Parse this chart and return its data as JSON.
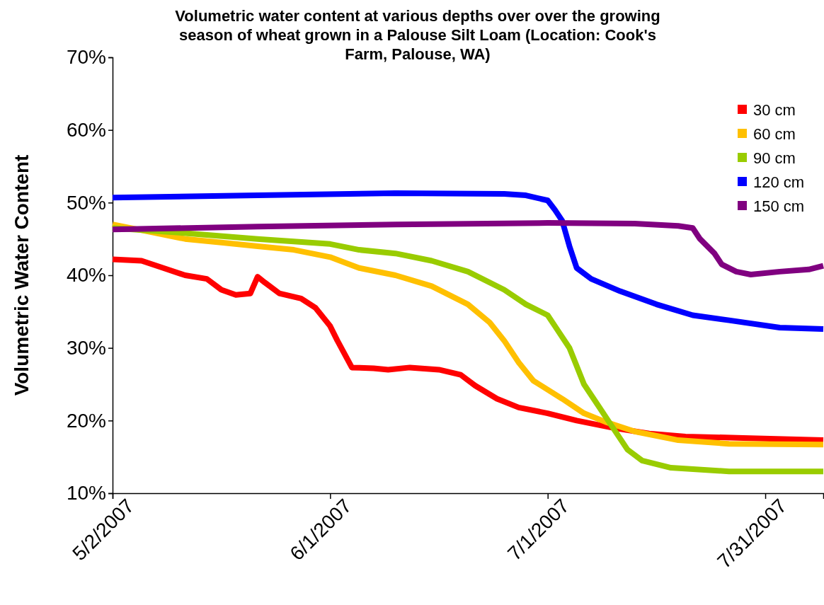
{
  "chart_data": {
    "type": "line",
    "title": "Volumetric water content at various depths over over the growing season of wheat grown in a Palouse Silt Loam (Location: Cook's Farm, Palouse, WA)",
    "ylabel": "Volumetric Water Content",
    "xlim": [
      "2007-05-02",
      "2007-08-08"
    ],
    "xticks": [
      {
        "value": "2007-05-02",
        "label": "5/2/2007"
      },
      {
        "value": "2007-06-01",
        "label": "6/1/2007"
      },
      {
        "value": "2007-07-01",
        "label": "7/1/2007"
      },
      {
        "value": "2007-07-31",
        "label": "7/31/2007"
      }
    ],
    "ylim": [
      10,
      70
    ],
    "yticks": [
      {
        "value": 10,
        "label": "10%"
      },
      {
        "value": 20,
        "label": "20%"
      },
      {
        "value": 30,
        "label": "30%"
      },
      {
        "value": 40,
        "label": "40%"
      },
      {
        "value": 50,
        "label": "50%"
      },
      {
        "value": 60,
        "label": "60%"
      },
      {
        "value": 70,
        "label": "70%"
      }
    ],
    "grid": false,
    "legend": "top right",
    "line_style": "solid",
    "series": [
      {
        "name": "30 cm",
        "color": "#ff0000",
        "x": [
          "2007-05-02",
          "2007-05-06",
          "2007-05-09",
          "2007-05-12",
          "2007-05-15",
          "2007-05-17",
          "2007-05-19",
          "2007-05-21",
          "2007-05-22",
          "2007-05-23",
          "2007-05-25",
          "2007-05-28",
          "2007-05-30",
          "2007-06-01",
          "2007-06-02",
          "2007-06-04",
          "2007-06-07",
          "2007-06-09",
          "2007-06-12",
          "2007-06-16",
          "2007-06-19",
          "2007-06-21",
          "2007-06-24",
          "2007-06-27",
          "2007-07-01",
          "2007-07-05",
          "2007-07-10",
          "2007-07-15",
          "2007-07-20",
          "2007-07-28",
          "2007-08-08"
        ],
        "values": [
          42.2,
          42,
          41,
          40,
          39.5,
          38,
          37.3,
          37.5,
          39.8,
          39,
          37.5,
          36.8,
          35.5,
          33,
          31,
          27.3,
          27.2,
          27,
          27.3,
          27,
          26.3,
          24.8,
          23,
          21.8,
          21,
          20,
          19,
          18.2,
          17.8,
          17.6,
          17.3
        ]
      },
      {
        "name": "60 cm",
        "color": "#ffc000",
        "x": [
          "2007-05-02",
          "2007-05-07",
          "2007-05-12",
          "2007-05-17",
          "2007-05-22",
          "2007-05-27",
          "2007-06-01",
          "2007-06-05",
          "2007-06-10",
          "2007-06-15",
          "2007-06-20",
          "2007-06-23",
          "2007-06-25",
          "2007-06-27",
          "2007-06-29",
          "2007-07-03",
          "2007-07-06",
          "2007-07-09",
          "2007-07-13",
          "2007-07-19",
          "2007-07-26",
          "2007-08-08"
        ],
        "values": [
          47,
          46,
          45,
          44.5,
          44,
          43.5,
          42.5,
          41,
          40,
          38.5,
          36,
          33.5,
          31,
          28,
          25.5,
          23,
          21,
          19.8,
          18.5,
          17.3,
          16.8,
          16.7
        ]
      },
      {
        "name": "90 cm",
        "color": "#99cc00",
        "x": [
          "2007-05-02",
          "2007-05-12",
          "2007-05-22",
          "2007-06-01",
          "2007-06-05",
          "2007-06-10",
          "2007-06-15",
          "2007-06-20",
          "2007-06-25",
          "2007-06-28",
          "2007-07-01",
          "2007-07-02",
          "2007-07-04",
          "2007-07-06",
          "2007-07-08",
          "2007-07-10",
          "2007-07-12",
          "2007-07-14",
          "2007-07-18",
          "2007-07-26",
          "2007-08-08"
        ],
        "values": [
          46.5,
          45.8,
          45,
          44.3,
          43.5,
          43,
          42,
          40.5,
          38,
          36,
          34.5,
          33,
          30,
          25,
          22,
          19,
          16,
          14.5,
          13.5,
          13,
          13
        ]
      },
      {
        "name": "120 cm",
        "color": "#0000ff",
        "x": [
          "2007-05-02",
          "2007-05-22",
          "2007-06-10",
          "2007-06-25",
          "2007-06-28",
          "2007-07-01",
          "2007-07-02",
          "2007-07-03",
          "2007-07-04",
          "2007-07-05",
          "2007-07-07",
          "2007-07-11",
          "2007-07-16",
          "2007-07-21",
          "2007-07-26",
          "2007-08-02",
          "2007-08-08"
        ],
        "values": [
          50.7,
          51,
          51.3,
          51.2,
          51,
          50.3,
          49,
          47.5,
          44,
          41,
          39.5,
          37.8,
          36,
          34.5,
          33.8,
          32.8,
          32.6
        ]
      },
      {
        "name": "150 cm",
        "color": "#800080",
        "x": [
          "2007-05-02",
          "2007-05-22",
          "2007-06-10",
          "2007-07-01",
          "2007-07-13",
          "2007-07-19",
          "2007-07-21",
          "2007-07-22",
          "2007-07-24",
          "2007-07-25",
          "2007-07-27",
          "2007-07-29",
          "2007-08-02",
          "2007-08-06",
          "2007-08-08"
        ],
        "values": [
          46.3,
          46.7,
          47,
          47.2,
          47.1,
          46.8,
          46.5,
          45,
          43,
          41.5,
          40.5,
          40.1,
          40.5,
          40.8,
          41.3
        ]
      }
    ]
  }
}
